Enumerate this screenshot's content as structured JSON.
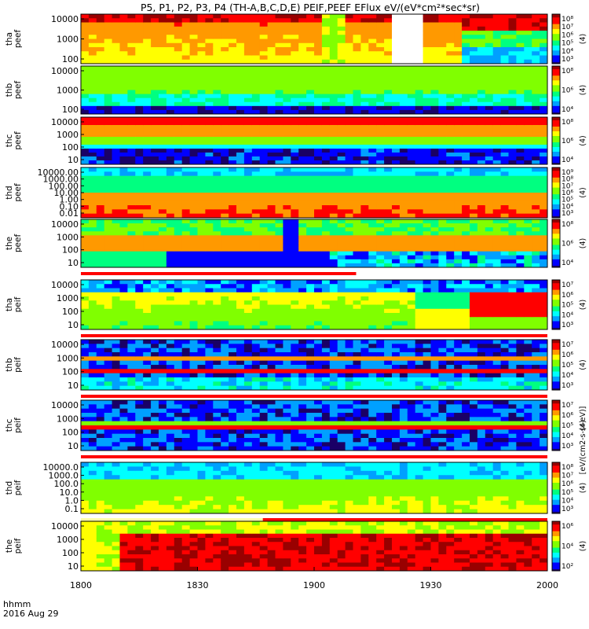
{
  "title": "P5, P1, P2, P3, P4 (TH-A,B,C,D,E) PEIF,PEEF EFlux eV/(eV*cm²*sec*sr)",
  "colorbar_unit": "[eV/(cm2-s-sr-eV)]",
  "colorbar_suffix": "(4)",
  "x_axis": {
    "ticks": [
      "1800",
      "1830",
      "1900",
      "1930",
      "2000"
    ],
    "label_lines": [
      "hhmm",
      "2016 Aug 29"
    ]
  },
  "colors": {
    "rainbow": [
      "#1a0066",
      "#0000ff",
      "#00a0ff",
      "#00ffff",
      "#00ff80",
      "#80ff00",
      "#ffff00",
      "#ff9900",
      "#ff0000",
      "#990000"
    ],
    "flag_bad": "#ff0000",
    "flag_ok": "#ffffaa"
  },
  "chart_data": [
    {
      "type": "heatmap",
      "probe_label": "tha\npeef",
      "yticks": [
        "10000",
        "1000",
        "100"
      ],
      "colorbar_ticks": [
        "10⁸",
        "10⁷",
        "10⁶",
        "10⁵",
        "10⁴",
        "10³"
      ],
      "species": "electron",
      "probe": "tha"
    },
    {
      "type": "heatmap",
      "probe_label": "thb\npeef",
      "yticks": [
        "10000",
        "1000",
        "100"
      ],
      "colorbar_ticks": [
        "10⁸",
        "10⁶",
        "10⁴"
      ],
      "species": "electron",
      "probe": "thb"
    },
    {
      "type": "heatmap",
      "probe_label": "thc\npeef",
      "yticks": [
        "10000",
        "1000",
        "100",
        "10"
      ],
      "colorbar_ticks": [
        "10⁸",
        "10⁶",
        "10⁴"
      ],
      "species": "electron",
      "probe": "thc"
    },
    {
      "type": "heatmap",
      "probe_label": "thd\npeef",
      "yticks": [
        "10000.00",
        "1000.00",
        "100.00",
        "10.00",
        "1.00",
        "0.10",
        "0.01"
      ],
      "colorbar_ticks": [
        "10⁹",
        "10⁸",
        "10⁷",
        "10⁶",
        "10⁵",
        "10⁴",
        "10³"
      ],
      "species": "electron",
      "probe": "thd"
    },
    {
      "type": "heatmap",
      "probe_label": "the\npeef",
      "yticks": [
        "10000",
        "1000",
        "100",
        "10"
      ],
      "colorbar_ticks": [
        "10⁸",
        "10⁶",
        "10⁴"
      ],
      "species": "electron",
      "probe": "the"
    },
    {
      "type": "heatmap",
      "probe_label": "tha\npeif",
      "yticks": [
        "10000",
        "1000",
        "100",
        "10"
      ],
      "colorbar_ticks": [
        "10⁷",
        "10⁶",
        "10⁵",
        "10⁴",
        "10³"
      ],
      "species": "ion",
      "probe": "tha"
    },
    {
      "type": "heatmap",
      "probe_label": "thb\npeif",
      "yticks": [
        "10000",
        "1000",
        "100",
        "10"
      ],
      "colorbar_ticks": [
        "10⁷",
        "10⁶",
        "10⁵",
        "10⁴",
        "10³"
      ],
      "species": "ion",
      "probe": "thb"
    },
    {
      "type": "heatmap",
      "probe_label": "thc\npeif",
      "yticks": [
        "10000",
        "1000",
        "100",
        "10"
      ],
      "colorbar_ticks": [
        "10⁷",
        "10⁶",
        "10⁵",
        "10⁴",
        "10³"
      ],
      "species": "ion",
      "probe": "thc"
    },
    {
      "type": "heatmap",
      "probe_label": "thd\npeif",
      "yticks": [
        "10000.0",
        "1000.0",
        "100.0",
        "10.0",
        "1.0",
        "0.1"
      ],
      "colorbar_ticks": [
        "10⁸",
        "10⁷",
        "10⁶",
        "10⁵",
        "10⁴",
        "10³"
      ],
      "species": "ion",
      "probe": "thd"
    },
    {
      "type": "heatmap",
      "probe_label": "the\npeif",
      "yticks": [
        "10000",
        "1000",
        "100",
        "10"
      ],
      "colorbar_ticks": [
        "10⁶",
        "10⁴",
        "10²"
      ],
      "species": "ion",
      "probe": "the"
    }
  ]
}
